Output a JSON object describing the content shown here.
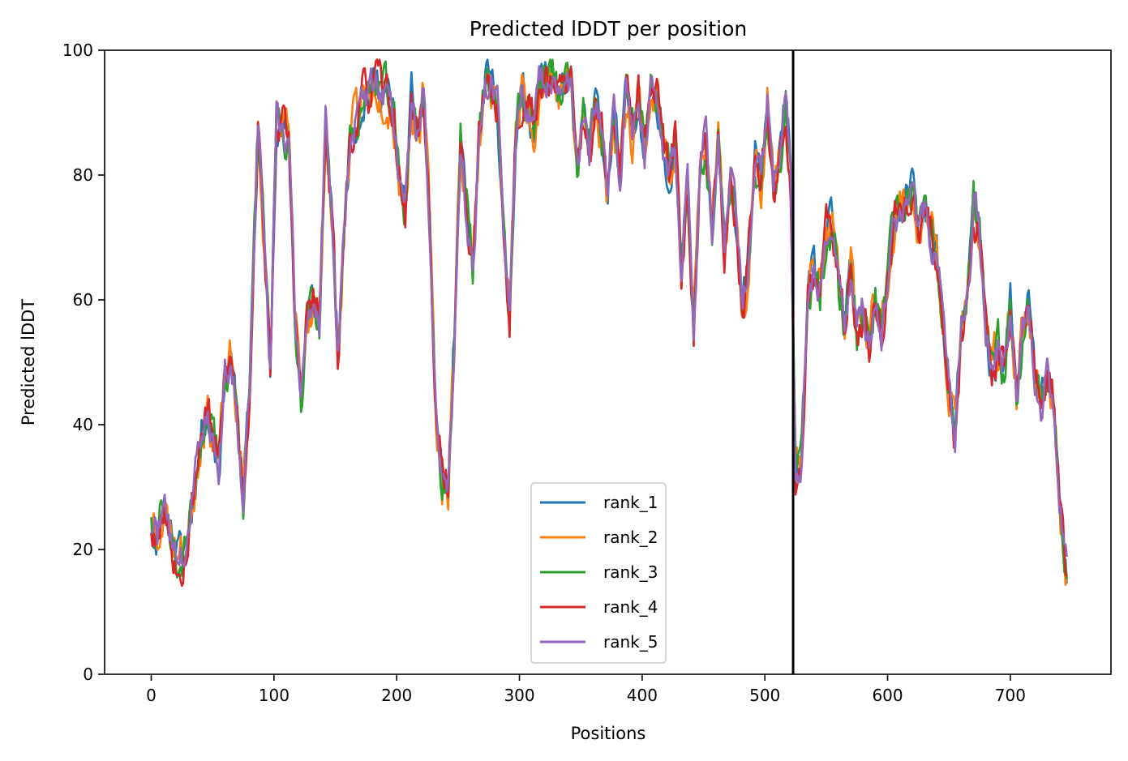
{
  "chart_data": {
    "type": "line",
    "title": "Predicted lDDT per position",
    "xlabel": "Positions",
    "ylabel": "Predicted lDDT",
    "xlim": [
      -38,
      782
    ],
    "ylim": [
      0,
      100
    ],
    "xticks": [
      0,
      100,
      200,
      300,
      400,
      500,
      600,
      700
    ],
    "yticks": [
      0,
      20,
      40,
      60,
      80,
      100
    ],
    "grid": false,
    "legend": "bottom-center",
    "vline": {
      "x": 523,
      "color": "#000000"
    },
    "colors": [
      "#1f77b4",
      "#ff7f0e",
      "#2ca02c",
      "#d62728",
      "#9467bd"
    ],
    "base_profile": {
      "x": [
        0,
        5,
        10,
        15,
        20,
        25,
        30,
        35,
        40,
        45,
        50,
        55,
        60,
        65,
        70,
        75,
        80,
        87,
        92,
        97,
        102,
        107,
        112,
        117,
        122,
        127,
        132,
        137,
        142,
        147,
        152,
        157,
        162,
        167,
        172,
        177,
        182,
        187,
        192,
        197,
        202,
        207,
        212,
        217,
        222,
        227,
        232,
        237,
        242,
        247,
        252,
        257,
        262,
        267,
        272,
        277,
        282,
        287,
        292,
        297,
        302,
        307,
        312,
        317,
        322,
        327,
        332,
        337,
        342,
        347,
        352,
        357,
        362,
        367,
        372,
        377,
        382,
        387,
        392,
        397,
        402,
        407,
        412,
        417,
        422,
        427,
        432,
        437,
        442,
        447,
        452,
        457,
        462,
        467,
        472,
        477,
        482,
        487,
        492,
        497,
        502,
        507,
        512,
        517,
        521,
        523,
        525,
        530,
        535,
        540,
        545,
        550,
        555,
        560,
        565,
        570,
        575,
        580,
        585,
        590,
        595,
        600,
        605,
        610,
        615,
        620,
        625,
        630,
        635,
        640,
        645,
        650,
        655,
        660,
        665,
        670,
        675,
        680,
        685,
        690,
        695,
        700,
        705,
        710,
        715,
        720,
        725,
        730,
        735,
        740,
        746
      ],
      "y": [
        24,
        22,
        27,
        22,
        20,
        19,
        22,
        30,
        38,
        43,
        38,
        33,
        48,
        50,
        42,
        29,
        45,
        88,
        70,
        48,
        90,
        88,
        85,
        58,
        44,
        58,
        60,
        56,
        87,
        73,
        52,
        70,
        86,
        89,
        92,
        93,
        95,
        94,
        93,
        90,
        80,
        74,
        92,
        86,
        93,
        72,
        40,
        31,
        30,
        55,
        85,
        74,
        65,
        85,
        95,
        94,
        92,
        70,
        57,
        87,
        93,
        91,
        88,
        95,
        96,
        97,
        92,
        95,
        94,
        80,
        90,
        82,
        92,
        86,
        77,
        90,
        80,
        93,
        87,
        93,
        84,
        93,
        92,
        85,
        80,
        87,
        65,
        78,
        56,
        80,
        86,
        70,
        84,
        68,
        80,
        72,
        57,
        68,
        84,
        78,
        92,
        79,
        82,
        92,
        80,
        54,
        32,
        35,
        60,
        65,
        62,
        70,
        72,
        62,
        56,
        66,
        55,
        58,
        52,
        60,
        55,
        63,
        72,
        74,
        75,
        78,
        70,
        73,
        70,
        68,
        56,
        46,
        38,
        55,
        60,
        75,
        70,
        55,
        48,
        52,
        48,
        60,
        45,
        55,
        60,
        48,
        44,
        48,
        45,
        28,
        16
      ]
    },
    "series": [
      {
        "name": "rank_1",
        "seed": 11,
        "noise": 1.6
      },
      {
        "name": "rank_2",
        "seed": 23,
        "noise": 1.9
      },
      {
        "name": "rank_3",
        "seed": 37,
        "noise": 1.7
      },
      {
        "name": "rank_4",
        "seed": 53,
        "noise": 1.8
      },
      {
        "name": "rank_5",
        "seed": 71,
        "noise": 1.5
      }
    ]
  }
}
